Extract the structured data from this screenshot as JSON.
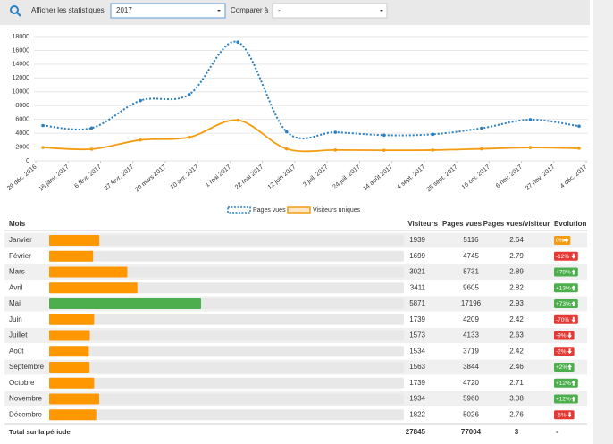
{
  "toolbar": {
    "label": "Afficher les statistiques",
    "year": "2017",
    "compare_label": "Comparer à",
    "compare": "-"
  },
  "chart": {
    "type": "line",
    "ylim": [
      0,
      18000
    ],
    "yticks": [
      0,
      2000,
      4000,
      6000,
      8000,
      10000,
      12000,
      14000,
      16000,
      18000
    ],
    "x_labels": [
      "29 déc. 2016",
      "16 janv. 2017",
      "6 févr. 2017",
      "27 févr. 2017",
      "20 mars 2017",
      "10 avr. 2017",
      "1 mai 2017",
      "22 mai 2017",
      "12 juin 2017",
      "3 juil. 2017",
      "24 juil. 2017",
      "14 août 2017",
      "4 sept. 2017",
      "25 sept. 2017",
      "16 oct. 2017",
      "6 nov. 2017",
      "27 nov. 2017",
      "4 déc. 2017"
    ],
    "series": [
      {
        "name": "Pages vues",
        "color": "#2a80c2"
      },
      {
        "name": "Visiteurs uniques",
        "color": "#f39c12"
      }
    ]
  },
  "table": {
    "columns": [
      "Mois",
      "Visiteurs",
      "Pages vues",
      "Pages vues/visiteur",
      "Evolution"
    ],
    "rows": [
      [
        "Janvier",
        1939,
        5116,
        2.64,
        "0%"
      ],
      [
        "Février",
        1699,
        4745,
        2.79,
        "-12%"
      ],
      [
        "Mars",
        3021,
        8731,
        2.89,
        "+78%"
      ],
      [
        "Avril",
        3411,
        9605,
        2.82,
        "+13%"
      ],
      [
        "Mai",
        5871,
        17196,
        2.93,
        "+73%"
      ],
      [
        "Juin",
        1739,
        4209,
        2.42,
        "-70%"
      ],
      [
        "Juillet",
        1573,
        4133,
        2.63,
        "-9%"
      ],
      [
        "Août",
        1534,
        3719,
        2.42,
        "-2%"
      ],
      [
        "Septembre",
        1563,
        3844,
        2.46,
        "+2%"
      ],
      [
        "Octobre",
        1739,
        4720,
        2.71,
        "+12%"
      ],
      [
        "Novembre",
        1934,
        5960,
        3.08,
        "+12%"
      ],
      [
        "Décembre",
        1822,
        5026,
        2.76,
        "-5%"
      ]
    ],
    "total": [
      "Total sur la période",
      27845,
      77004,
      3,
      "-"
    ]
  }
}
